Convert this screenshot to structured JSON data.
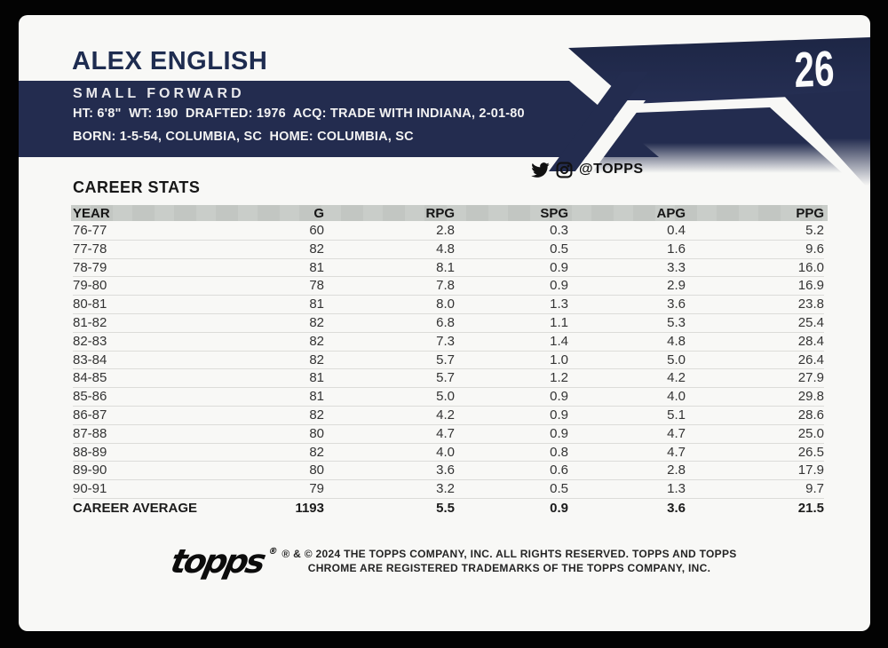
{
  "colors": {
    "navy": "#232c4f",
    "card_bg": "#f8f8f6",
    "header_gray": "#c7cbc7",
    "accent_text": "#1e2c50"
  },
  "card_number": "26",
  "player": {
    "name": "ALEX ENGLISH",
    "position": "SMALL FORWARD",
    "bio_line1": "HT: 6'8\"  WT: 190  DRAFTED: 1976  ACQ: TRADE WITH INDIANA, 2-01-80",
    "bio_line2": "BORN: 1-5-54, COLUMBIA, SC  HOME: COLUMBIA, SC"
  },
  "social": {
    "icons": [
      "twitter-icon",
      "instagram-icon"
    ],
    "handle": "@TOPPS"
  },
  "stats": {
    "title": "CAREER STATS",
    "columns": [
      "YEAR",
      "G",
      "RPG",
      "SPG",
      "APG",
      "PPG"
    ],
    "rows": [
      [
        "76-77",
        "60",
        "2.8",
        "0.3",
        "0.4",
        "5.2"
      ],
      [
        "77-78",
        "82",
        "4.8",
        "0.5",
        "1.6",
        "9.6"
      ],
      [
        "78-79",
        "81",
        "8.1",
        "0.9",
        "3.3",
        "16.0"
      ],
      [
        "79-80",
        "78",
        "7.8",
        "0.9",
        "2.9",
        "16.9"
      ],
      [
        "80-81",
        "81",
        "8.0",
        "1.3",
        "3.6",
        "23.8"
      ],
      [
        "81-82",
        "82",
        "6.8",
        "1.1",
        "5.3",
        "25.4"
      ],
      [
        "82-83",
        "82",
        "7.3",
        "1.4",
        "4.8",
        "28.4"
      ],
      [
        "83-84",
        "82",
        "5.7",
        "1.0",
        "5.0",
        "26.4"
      ],
      [
        "84-85",
        "81",
        "5.7",
        "1.2",
        "4.2",
        "27.9"
      ],
      [
        "85-86",
        "81",
        "5.0",
        "0.9",
        "4.0",
        "29.8"
      ],
      [
        "86-87",
        "82",
        "4.2",
        "0.9",
        "5.1",
        "28.6"
      ],
      [
        "87-88",
        "80",
        "4.7",
        "0.9",
        "4.7",
        "25.0"
      ],
      [
        "88-89",
        "82",
        "4.0",
        "0.8",
        "4.7",
        "26.5"
      ],
      [
        "89-90",
        "80",
        "3.6",
        "0.6",
        "2.8",
        "17.9"
      ],
      [
        "90-91",
        "79",
        "3.2",
        "0.5",
        "1.3",
        "9.7"
      ]
    ],
    "career_average": [
      "CAREER AVERAGE",
      "1193",
      "5.5",
      "0.9",
      "3.6",
      "21.5"
    ]
  },
  "footer": {
    "logo_text": "topps",
    "logo_reg": "®",
    "copyright_line1": "® & © 2024 THE TOPPS COMPANY, INC. ALL RIGHTS RESERVED. TOPPS AND TOPPS",
    "copyright_line2": "CHROME ARE REGISTERED TRADEMARKS OF THE TOPPS COMPANY, INC."
  }
}
